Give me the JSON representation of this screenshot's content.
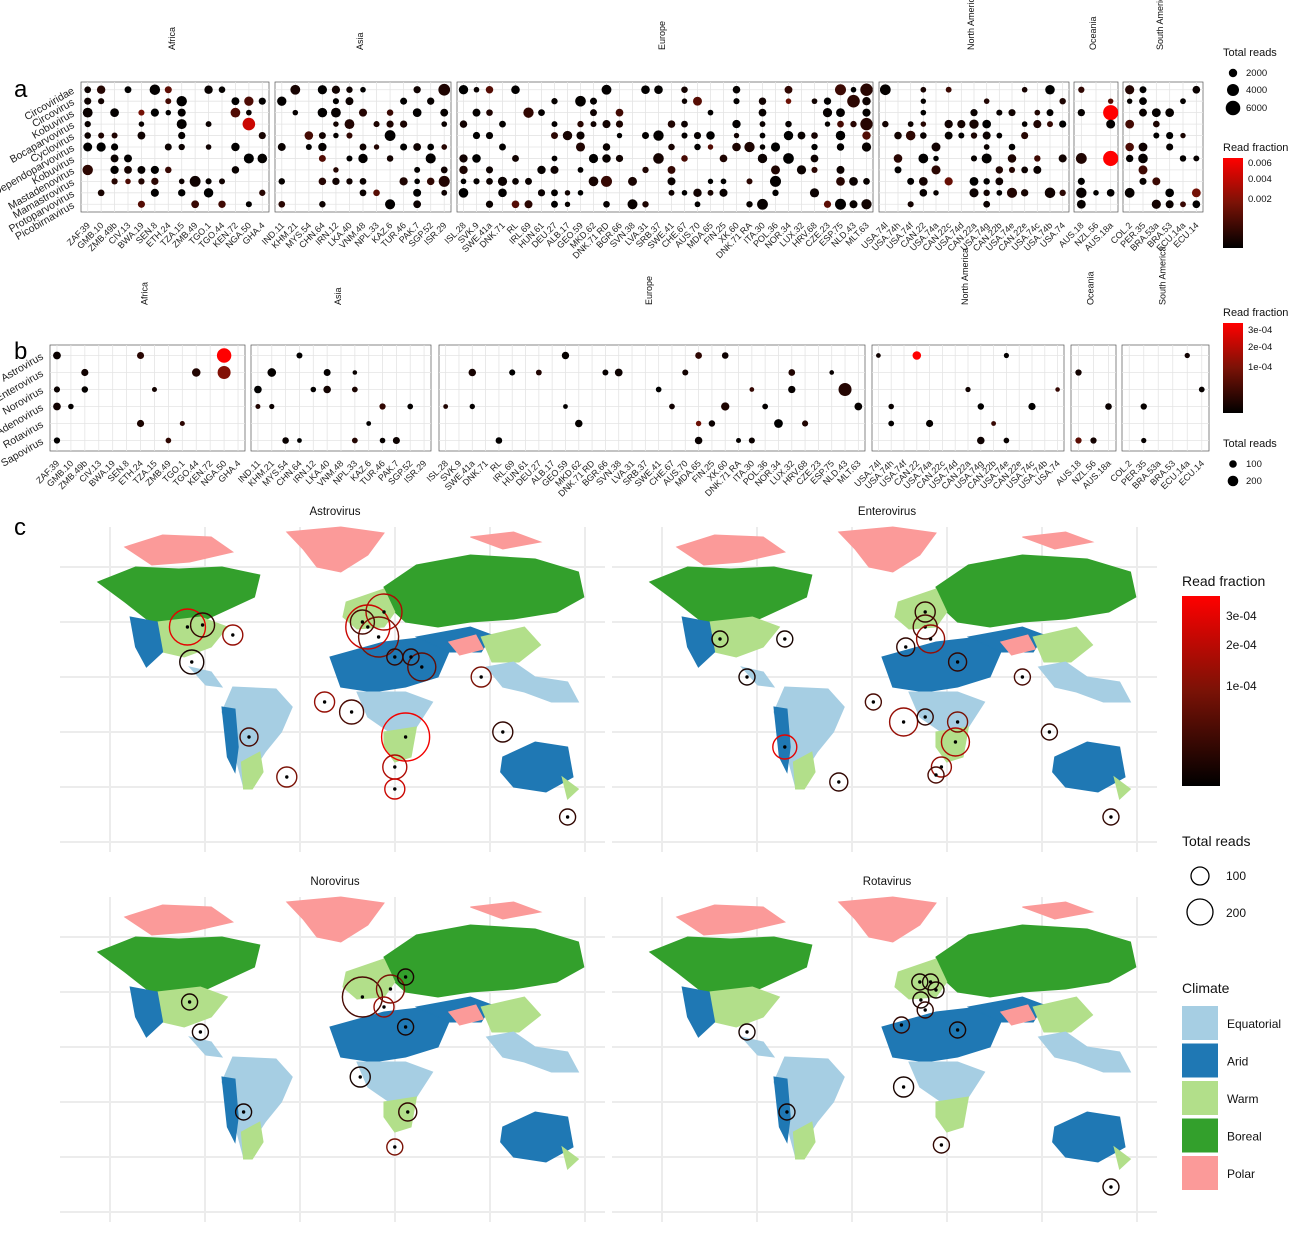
{
  "panel_letters": [
    "a",
    "b",
    "c"
  ],
  "continents": [
    "Africa",
    "Asia",
    "Europe",
    "North America",
    "Oceania",
    "South America"
  ],
  "samples": {
    "Africa": [
      "ZAF.39",
      "GMB.10",
      "ZMB.49b",
      "CIV.13",
      "BWA.19",
      "SEN.8",
      "ETH.24",
      "TZA.15",
      "ZMB.49",
      "TGO.1",
      "TGO.44",
      "KEN.72",
      "NGA.50",
      "GHA.4"
    ],
    "Asia": [
      "IND.11",
      "KHM.21",
      "MYS.54",
      "CHN.64",
      "IRN.12",
      "LKA.40",
      "VNM.48",
      "NPL.33",
      "KAZ.6",
      "TUR.46",
      "PAK.7",
      "SGP.52",
      "ISR.29"
    ],
    "Europe": [
      "ISL.28",
      "SVK.9",
      "SWE.41a",
      "DNK.71",
      "RL",
      "IRL.69",
      "HUN.61",
      "DEU.27",
      "ALB.17",
      "GEO.59",
      "MKD.62",
      "DNK.71 RD",
      "BGR.66",
      "SVN.38",
      "LVA.31",
      "SRB.37",
      "SWE.41",
      "CHE.67",
      "AUS.70",
      "MDA.65",
      "FIN.25",
      "XK.60",
      "DNK.71 RA",
      "ITA.30",
      "POL.36",
      "NOR.34",
      "LUX.32",
      "HRV.68",
      "CZE.23",
      "ESP.75",
      "NLD.43",
      "MLT.63"
    ],
    "North America": [
      "USA.74l",
      "USA.74h",
      "USA.74f",
      "CAN.22",
      "USA.74a",
      "CAN.22c",
      "USA.74d",
      "CAN.22a",
      "USA.74g",
      "CAN.22b",
      "USA.74e",
      "CAN.22e",
      "USA.74c",
      "USA.74b",
      "USA.74"
    ],
    "Oceania": [
      "AUS.18",
      "NZL.56",
      "AUS.18a"
    ],
    "South America": [
      "COL.2",
      "PER.35",
      "BRA.53a",
      "BRA.53",
      "ECU.14a",
      "ECU.14"
    ]
  },
  "chart_data": [
    {
      "id": "a",
      "type": "scatter",
      "layout": "dot-matrix",
      "rows": [
        "Circoviridae",
        "Circovirus",
        "Kobuvirus",
        "Bocaparvovirus",
        "Cyclovirus",
        "Dependoparvovirus",
        "Kobuvirus",
        "Mastadenovirus",
        "Mamastrovirus",
        "Protoparvovirus",
        "Picobirnavirus"
      ],
      "y_tick_labels": [
        "Circoviridae",
        "Circovirus",
        "Kobuvirus",
        "Bocaparvovirus",
        "Cyclovirus",
        "Dependoparvovirus",
        "Kobuvirus",
        "Mastadenovirus",
        "Mamastrovirus",
        "Protoparvovirus",
        "Picobirnavirus"
      ],
      "color_legend": {
        "title": "Read fraction",
        "ticks": [
          "0.006",
          "0.004",
          "0.002"
        ],
        "range": [
          0,
          0.0065
        ],
        "low_color": "#000000",
        "high_color": "#ff0000"
      },
      "size_legend": {
        "title": "Total reads",
        "labels": [
          "2000",
          "4000",
          "6000"
        ],
        "values": [
          2000,
          4000,
          6000
        ]
      },
      "highlights": [
        {
          "sample": "NGA.50",
          "row": "Bocaparvovirus",
          "reads": 4200,
          "fraction": 0.0052
        },
        {
          "sample": "AUS.18a",
          "row": "Kobuvirus",
          "reads": 6500,
          "fraction": 0.0065
        },
        {
          "sample": "ISR.29",
          "row": "Circoviridae",
          "reads": 3500,
          "fraction": 0.0008
        },
        {
          "sample": "ISR.29",
          "row": "Mamastrovirus",
          "reads": 3000,
          "fraction": 0.0009
        },
        {
          "sample": "NLD.43",
          "row": "Circovirus",
          "reads": 4200,
          "fraction": 0.0012
        },
        {
          "sample": "MLT.63",
          "row": "Circoviridae",
          "reads": 4000,
          "fraction": 0.0011
        },
        {
          "sample": "MLT.63",
          "row": "Bocaparvovirus",
          "reads": 4000,
          "fraction": 0.001
        },
        {
          "sample": "ESP.75",
          "row": "Circoviridae",
          "reads": 3000,
          "fraction": 0.0016
        }
      ]
    },
    {
      "id": "b",
      "type": "scatter",
      "layout": "dot-matrix",
      "rows": [
        "Astrovirus",
        "Enterovirus",
        "Norovirus",
        "Adenovirus",
        "Rotavirus",
        "Sapovirus"
      ],
      "y_tick_labels": [
        "Astrovirus",
        "Enterovirus",
        "Norovirus",
        "Adenovirus",
        "Rotavirus",
        "Sapovirus"
      ],
      "color_legend": {
        "title": "Read fraction",
        "ticks": [
          "3e-04",
          "2e-04",
          "1e-04"
        ],
        "range": [
          0,
          0.00034
        ],
        "low_color": "#000000",
        "high_color": "#ff0000"
      },
      "size_legend": {
        "title": "Total reads",
        "labels": [
          "100",
          "200"
        ],
        "values": [
          100,
          200
        ]
      },
      "highlights": [
        {
          "sample": "NGA.50",
          "row": "Astrovirus",
          "reads": 230,
          "fraction": 0.00034
        },
        {
          "sample": "NGA.50",
          "row": "Enterovirus",
          "reads": 180,
          "fraction": 0.00018
        },
        {
          "sample": "NLD.43",
          "row": "Norovirus",
          "reads": 180,
          "fraction": 5e-05
        },
        {
          "sample": "CAN.22",
          "row": "Astrovirus",
          "reads": 60,
          "fraction": 0.00034
        }
      ]
    },
    {
      "id": "c",
      "type": "scatter",
      "layout": "world-maps",
      "maps": [
        "Astrovirus",
        "Enterovirus",
        "Norovirus",
        "Rotavirus"
      ],
      "color_legend": {
        "title": "Read fraction",
        "ticks": [
          "3e-04",
          "2e-04",
          "1e-04"
        ],
        "range": [
          0,
          0.00035
        ]
      },
      "size_legend": {
        "title": "Total reads",
        "labels": [
          "100",
          "200"
        ],
        "values": [
          100,
          200
        ]
      },
      "climate_legend": {
        "title": "Climate",
        "classes": [
          {
            "name": "Equatorial",
            "color": "#a6cee3"
          },
          {
            "name": "Arid",
            "color": "#1f78b4"
          },
          {
            "name": "Warm",
            "color": "#b2df8a"
          },
          {
            "name": "Boreal",
            "color": "#33a02c"
          },
          {
            "name": "Polar",
            "color": "#fb9a99"
          }
        ]
      }
    }
  ]
}
